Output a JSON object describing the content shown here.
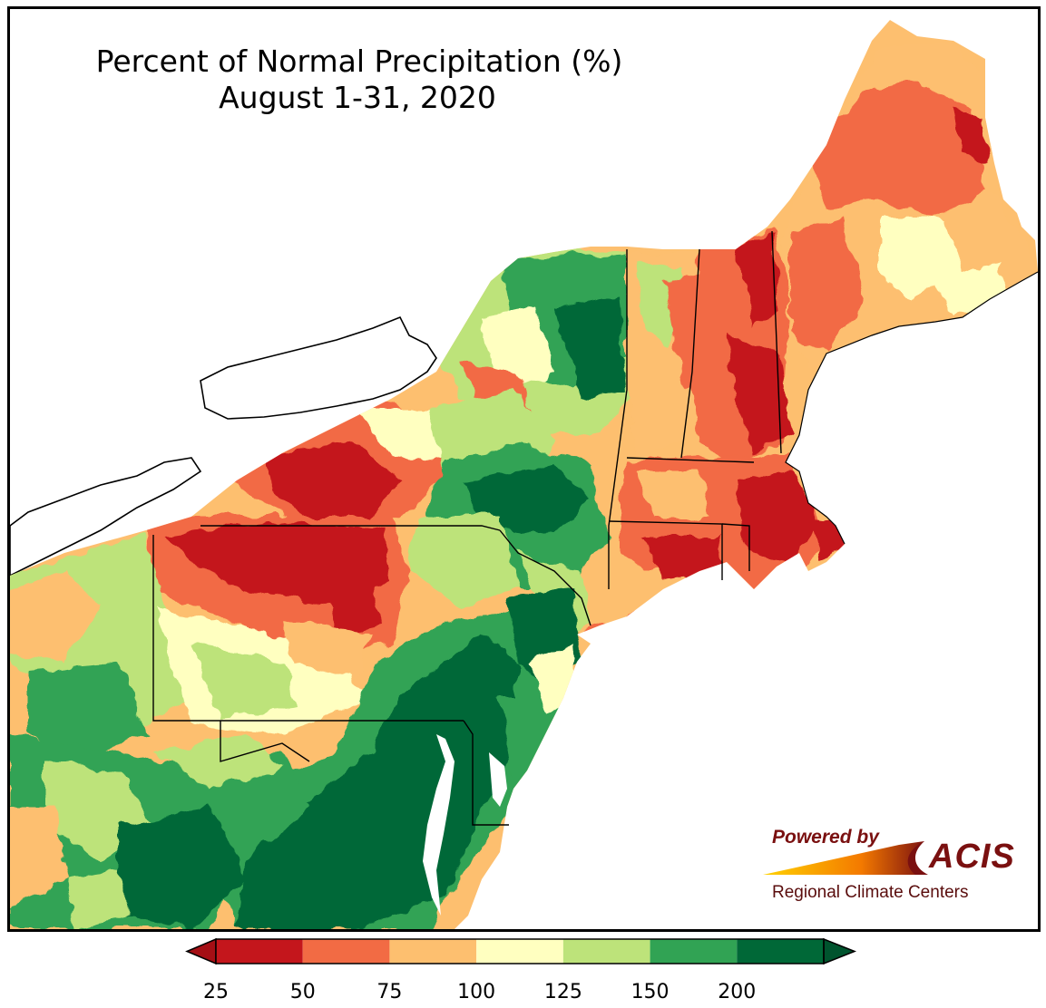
{
  "title": {
    "line1": "Percent of Normal Precipitation (%)",
    "line2": "August 1-31, 2020"
  },
  "logo": {
    "powered_by": "Powered by",
    "name": "ACIS",
    "subtitle": "Regional Climate Centers"
  },
  "colorbar": {
    "ticks": [
      "25",
      "50",
      "75",
      "100",
      "125",
      "150",
      "200"
    ],
    "colors": [
      "#c4161c",
      "#f26b44",
      "#fdbf6f",
      "#ffffc0",
      "#bde37a",
      "#31a354",
      "#006837"
    ],
    "under_color": "#a50f15",
    "over_color": "#00542e"
  },
  "regions": [
    {
      "name": "western-new-york-dry-core",
      "color": "#c4161c"
    },
    {
      "name": "new-hampshire-dry",
      "color": "#c4161c"
    },
    {
      "name": "maine-below-normal",
      "color": "#f26b44"
    },
    {
      "name": "massachusetts-dry",
      "color": "#c4161c"
    },
    {
      "name": "northern-new-york-wet",
      "color": "#31a354"
    },
    {
      "name": "mid-atlantic-very-wet",
      "color": "#006837"
    },
    {
      "name": "west-virginia-wet",
      "color": "#31a354"
    }
  ]
}
